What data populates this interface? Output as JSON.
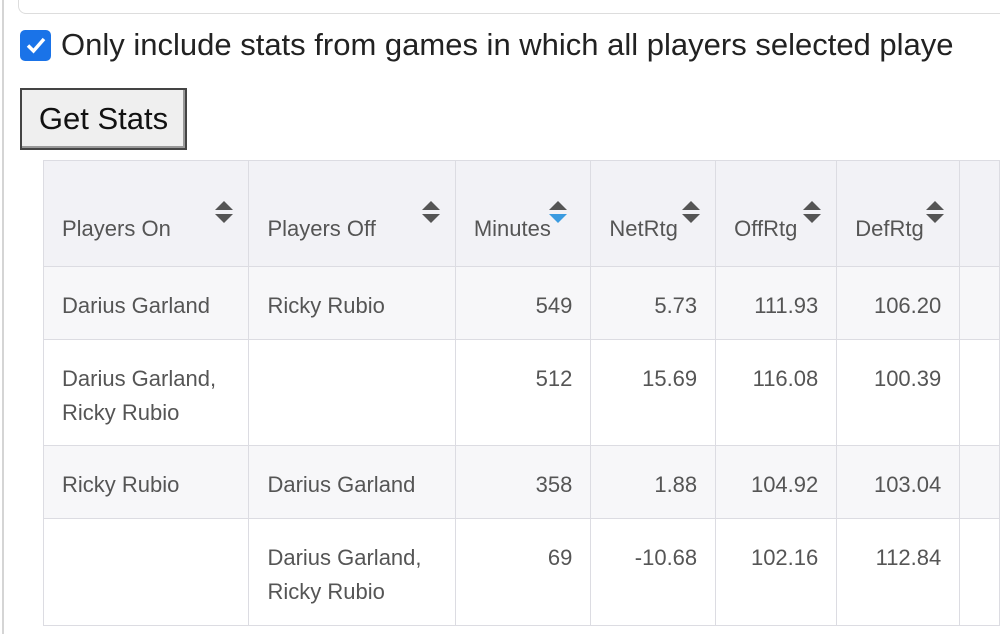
{
  "filter": {
    "label": "Only include stats from games in which all players selected playe",
    "checked": true
  },
  "button": {
    "label": "Get Stats"
  },
  "table": {
    "columns": [
      "Players On",
      "Players Off",
      "Minutes",
      "NetRtg",
      "OffRtg",
      "DefRtg"
    ],
    "sort": {
      "column": 2,
      "direction": "desc"
    },
    "rows": [
      [
        "Darius Garland",
        "Ricky Rubio",
        "549",
        "5.73",
        "111.93",
        "106.20"
      ],
      [
        "Darius Garland, Ricky Rubio",
        null,
        "512",
        "15.69",
        "116.08",
        "100.39"
      ],
      [
        "Ricky Rubio",
        "Darius Garland",
        "358",
        "1.88",
        "104.92",
        "103.04"
      ],
      [
        null,
        "Darius Garland, Ricky Rubio",
        "69",
        "-10.68",
        "102.16",
        "112.84"
      ]
    ]
  }
}
